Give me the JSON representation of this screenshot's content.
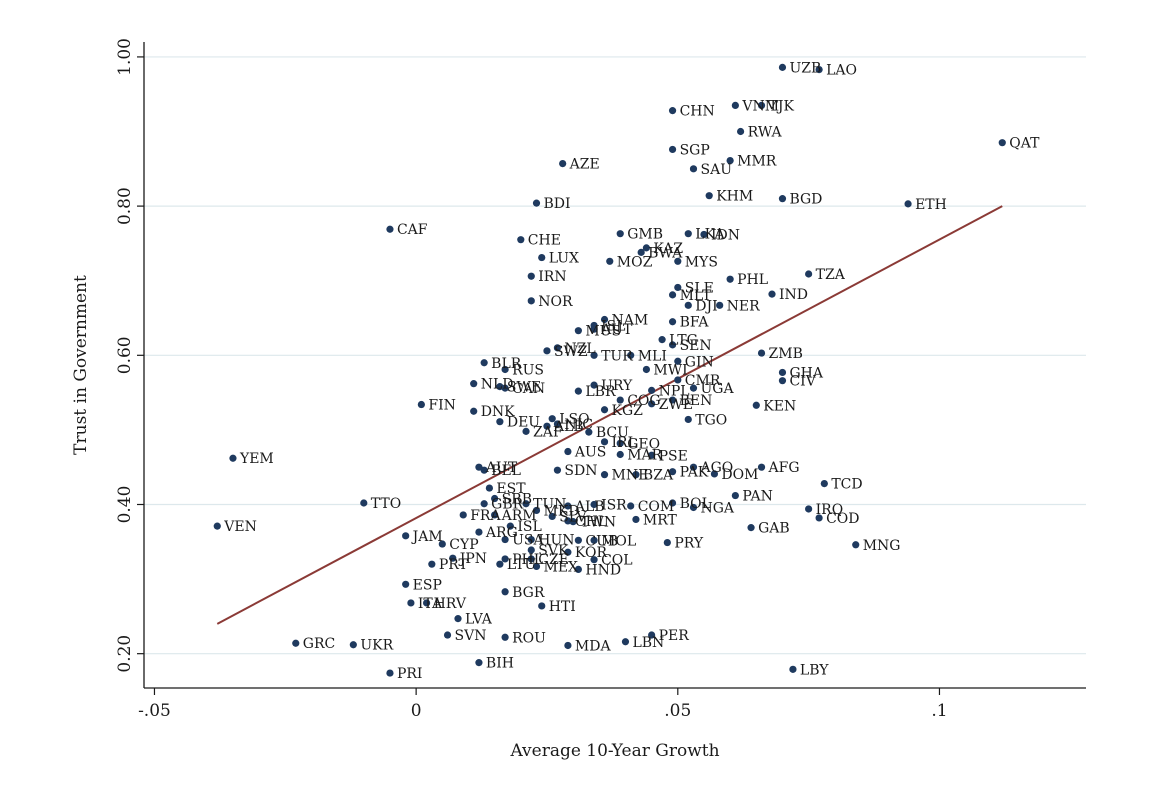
{
  "chart_data": {
    "type": "scatter",
    "title": "",
    "xlabel": "Average 10-Year Growth",
    "ylabel": "Trust in Government",
    "xlim": [
      -0.052,
      0.128
    ],
    "ylim": [
      0.154,
      1.02
    ],
    "x_ticks": [
      -0.05,
      0,
      0.05,
      0.1
    ],
    "x_tick_labels": [
      "-.05",
      "0",
      ".05",
      ".1"
    ],
    "y_ticks": [
      0.2,
      0.4,
      0.6,
      0.8,
      1.0
    ],
    "y_tick_labels": [
      "0.20",
      "0.40",
      "0.60",
      "0.80",
      "1.00"
    ],
    "grid": "horizontal",
    "colors": {
      "point": "#1f3a5f",
      "fit_line": "#8b3a36",
      "grid": "#dde8ec",
      "axis": "#1a1a1a"
    },
    "fit_line": {
      "x": [
        -0.038,
        0.112
      ],
      "y": [
        0.24,
        0.8
      ]
    },
    "points": [
      {
        "label": "UZB",
        "x": 0.07,
        "y": 0.986
      },
      {
        "label": "LAO",
        "x": 0.077,
        "y": 0.983
      },
      {
        "label": "VNM",
        "x": 0.061,
        "y": 0.935
      },
      {
        "label": "TJK",
        "x": 0.066,
        "y": 0.935
      },
      {
        "label": "CHN",
        "x": 0.049,
        "y": 0.928
      },
      {
        "label": "RWA",
        "x": 0.062,
        "y": 0.9
      },
      {
        "label": "QAT",
        "x": 0.112,
        "y": 0.885
      },
      {
        "label": "SGP",
        "x": 0.049,
        "y": 0.876
      },
      {
        "label": "MMR",
        "x": 0.06,
        "y": 0.861
      },
      {
        "label": "AZE",
        "x": 0.028,
        "y": 0.857
      },
      {
        "label": "SAU",
        "x": 0.053,
        "y": 0.85
      },
      {
        "label": "KHM",
        "x": 0.056,
        "y": 0.814
      },
      {
        "label": "BGD",
        "x": 0.07,
        "y": 0.81
      },
      {
        "label": "BDI",
        "x": 0.023,
        "y": 0.804
      },
      {
        "label": "ETH",
        "x": 0.094,
        "y": 0.803
      },
      {
        "label": "CAF",
        "x": -0.005,
        "y": 0.769
      },
      {
        "label": "GMB",
        "x": 0.039,
        "y": 0.763
      },
      {
        "label": "LKA",
        "x": 0.052,
        "y": 0.763
      },
      {
        "label": "IDN",
        "x": 0.055,
        "y": 0.762
      },
      {
        "label": "CHE",
        "x": 0.02,
        "y": 0.755
      },
      {
        "label": "KAZ",
        "x": 0.044,
        "y": 0.744
      },
      {
        "label": "BWA",
        "x": 0.043,
        "y": 0.738
      },
      {
        "label": "LUX",
        "x": 0.024,
        "y": 0.731
      },
      {
        "label": "MOZ",
        "x": 0.037,
        "y": 0.726
      },
      {
        "label": "MYS",
        "x": 0.05,
        "y": 0.726
      },
      {
        "label": "TZA",
        "x": 0.075,
        "y": 0.709
      },
      {
        "label": "IRN",
        "x": 0.022,
        "y": 0.706
      },
      {
        "label": "PHL",
        "x": 0.06,
        "y": 0.702
      },
      {
        "label": "SLE",
        "x": 0.05,
        "y": 0.691
      },
      {
        "label": "MLT",
        "x": 0.049,
        "y": 0.681
      },
      {
        "label": "IND",
        "x": 0.068,
        "y": 0.682
      },
      {
        "label": "NOR",
        "x": 0.022,
        "y": 0.673
      },
      {
        "label": "DJI",
        "x": 0.052,
        "y": 0.667
      },
      {
        "label": "NER",
        "x": 0.058,
        "y": 0.667
      },
      {
        "label": "NAM",
        "x": 0.036,
        "y": 0.648
      },
      {
        "label": "BFA",
        "x": 0.049,
        "y": 0.645
      },
      {
        "label": "ISL",
        "x": 0.034,
        "y": 0.64
      },
      {
        "label": "AUT",
        "x": 0.034,
        "y": 0.635
      },
      {
        "label": "MUS",
        "x": 0.031,
        "y": 0.633
      },
      {
        "label": "LTG",
        "x": 0.047,
        "y": 0.621
      },
      {
        "label": "SEN",
        "x": 0.049,
        "y": 0.614
      },
      {
        "label": "NZL",
        "x": 0.027,
        "y": 0.61
      },
      {
        "label": "SWZ",
        "x": 0.025,
        "y": 0.606
      },
      {
        "label": "TUR",
        "x": 0.034,
        "y": 0.6
      },
      {
        "label": "MLI",
        "x": 0.041,
        "y": 0.6
      },
      {
        "label": "ZMB",
        "x": 0.066,
        "y": 0.603
      },
      {
        "label": "GIN",
        "x": 0.05,
        "y": 0.592
      },
      {
        "label": "BLR",
        "x": 0.013,
        "y": 0.59
      },
      {
        "label": "RUS",
        "x": 0.017,
        "y": 0.581
      },
      {
        "label": "MWI",
        "x": 0.044,
        "y": 0.581
      },
      {
        "label": "GHA",
        "x": 0.07,
        "y": 0.577
      },
      {
        "label": "CMR",
        "x": 0.05,
        "y": 0.567
      },
      {
        "label": "CIV",
        "x": 0.07,
        "y": 0.566
      },
      {
        "label": "NLD",
        "x": 0.011,
        "y": 0.562
      },
      {
        "label": "URY",
        "x": 0.034,
        "y": 0.56
      },
      {
        "label": "SWE",
        "x": 0.016,
        "y": 0.558
      },
      {
        "label": "CAN",
        "x": 0.017,
        "y": 0.556
      },
      {
        "label": "UGA",
        "x": 0.053,
        "y": 0.556
      },
      {
        "label": "NPL",
        "x": 0.045,
        "y": 0.553
      },
      {
        "label": "LBR",
        "x": 0.031,
        "y": 0.552
      },
      {
        "label": "COG",
        "x": 0.039,
        "y": 0.54
      },
      {
        "label": "BEN",
        "x": 0.049,
        "y": 0.54
      },
      {
        "label": "ZWE",
        "x": 0.045,
        "y": 0.535
      },
      {
        "label": "KEN",
        "x": 0.065,
        "y": 0.533
      },
      {
        "label": "FIN",
        "x": 0.001,
        "y": 0.534
      },
      {
        "label": "KGZ",
        "x": 0.036,
        "y": 0.527
      },
      {
        "label": "DNK",
        "x": 0.011,
        "y": 0.525
      },
      {
        "label": "TGO",
        "x": 0.052,
        "y": 0.514
      },
      {
        "label": "LSO",
        "x": 0.026,
        "y": 0.515
      },
      {
        "label": "DEU",
        "x": 0.016,
        "y": 0.511
      },
      {
        "label": "NIC",
        "x": 0.027,
        "y": 0.508
      },
      {
        "label": "ALB",
        "x": 0.025,
        "y": 0.505
      },
      {
        "label": "ZAF",
        "x": 0.021,
        "y": 0.498
      },
      {
        "label": "BCU",
        "x": 0.033,
        "y": 0.497
      },
      {
        "label": "IRL",
        "x": 0.036,
        "y": 0.484
      },
      {
        "label": "GEO",
        "x": 0.039,
        "y": 0.482
      },
      {
        "label": "MAR",
        "x": 0.039,
        "y": 0.467
      },
      {
        "label": "PSE",
        "x": 0.045,
        "y": 0.466
      },
      {
        "label": "AUS",
        "x": 0.029,
        "y": 0.471
      },
      {
        "label": "YEM",
        "x": -0.035,
        "y": 0.462
      },
      {
        "label": "AUT",
        "x": 0.012,
        "y": 0.45
      },
      {
        "label": "SDN",
        "x": 0.027,
        "y": 0.446
      },
      {
        "label": "AGO",
        "x": 0.053,
        "y": 0.45
      },
      {
        "label": "AFG",
        "x": 0.066,
        "y": 0.45
      },
      {
        "label": "BEL",
        "x": 0.013,
        "y": 0.446
      },
      {
        "label": "PAK",
        "x": 0.049,
        "y": 0.444
      },
      {
        "label": "DOM",
        "x": 0.057,
        "y": 0.441
      },
      {
        "label": "MNE",
        "x": 0.036,
        "y": 0.44
      },
      {
        "label": "BZA",
        "x": 0.042,
        "y": 0.44
      },
      {
        "label": "TCD",
        "x": 0.078,
        "y": 0.428
      },
      {
        "label": "EST",
        "x": 0.014,
        "y": 0.422
      },
      {
        "label": "PAN",
        "x": 0.061,
        "y": 0.412
      },
      {
        "label": "SRB",
        "x": 0.015,
        "y": 0.408
      },
      {
        "label": "TUN",
        "x": 0.021,
        "y": 0.401
      },
      {
        "label": "TTO",
        "x": -0.01,
        "y": 0.402
      },
      {
        "label": "GBR",
        "x": 0.013,
        "y": 0.401
      },
      {
        "label": "ISR",
        "x": 0.034,
        "y": 0.4
      },
      {
        "label": "BOL",
        "x": 0.049,
        "y": 0.402
      },
      {
        "label": "COM",
        "x": 0.041,
        "y": 0.398
      },
      {
        "label": "ALB",
        "x": 0.029,
        "y": 0.398
      },
      {
        "label": "NGA",
        "x": 0.053,
        "y": 0.396
      },
      {
        "label": "IRQ",
        "x": 0.075,
        "y": 0.394
      },
      {
        "label": "MKD",
        "x": 0.023,
        "y": 0.392
      },
      {
        "label": "ARM",
        "x": 0.015,
        "y": 0.386
      },
      {
        "label": "FRA",
        "x": 0.009,
        "y": 0.386
      },
      {
        "label": "SLV",
        "x": 0.026,
        "y": 0.384
      },
      {
        "label": "COD",
        "x": 0.077,
        "y": 0.382
      },
      {
        "label": "MRT",
        "x": 0.042,
        "y": 0.38
      },
      {
        "label": "CHL",
        "x": 0.029,
        "y": 0.378
      },
      {
        "label": "TWN",
        "x": 0.03,
        "y": 0.377
      },
      {
        "label": "GAB",
        "x": 0.064,
        "y": 0.369
      },
      {
        "label": "ISL",
        "x": 0.018,
        "y": 0.371
      },
      {
        "label": "VEN",
        "x": -0.038,
        "y": 0.371
      },
      {
        "label": "ARG",
        "x": 0.012,
        "y": 0.363
      },
      {
        "label": "JAM",
        "x": -0.002,
        "y": 0.358
      },
      {
        "label": "USA",
        "x": 0.017,
        "y": 0.353
      },
      {
        "label": "HUN",
        "x": 0.022,
        "y": 0.353
      },
      {
        "label": "CUB",
        "x": 0.031,
        "y": 0.352
      },
      {
        "label": "MOL",
        "x": 0.034,
        "y": 0.352
      },
      {
        "label": "PRY",
        "x": 0.048,
        "y": 0.349
      },
      {
        "label": "MNG",
        "x": 0.084,
        "y": 0.346
      },
      {
        "label": "CYP",
        "x": 0.005,
        "y": 0.347
      },
      {
        "label": "SVK",
        "x": 0.022,
        "y": 0.339
      },
      {
        "label": "KOR",
        "x": 0.029,
        "y": 0.336
      },
      {
        "label": "JPN",
        "x": 0.007,
        "y": 0.328
      },
      {
        "label": "PHL",
        "x": 0.017,
        "y": 0.327
      },
      {
        "label": "CZE",
        "x": 0.022,
        "y": 0.327
      },
      {
        "label": "COL",
        "x": 0.034,
        "y": 0.326
      },
      {
        "label": "PRT",
        "x": 0.003,
        "y": 0.32
      },
      {
        "label": "LTU",
        "x": 0.016,
        "y": 0.32
      },
      {
        "label": "MEX",
        "x": 0.023,
        "y": 0.317
      },
      {
        "label": "HND",
        "x": 0.031,
        "y": 0.313
      },
      {
        "label": "ESP",
        "x": -0.002,
        "y": 0.293
      },
      {
        "label": "BGR",
        "x": 0.017,
        "y": 0.283
      },
      {
        "label": "ITA",
        "x": -0.001,
        "y": 0.268
      },
      {
        "label": "HRV",
        "x": 0.002,
        "y": 0.268
      },
      {
        "label": "HTI",
        "x": 0.024,
        "y": 0.264
      },
      {
        "label": "LVA",
        "x": 0.008,
        "y": 0.247
      },
      {
        "label": "SVN",
        "x": 0.006,
        "y": 0.225
      },
      {
        "label": "ROU",
        "x": 0.017,
        "y": 0.222
      },
      {
        "label": "PER",
        "x": 0.045,
        "y": 0.225
      },
      {
        "label": "LBN",
        "x": 0.04,
        "y": 0.216
      },
      {
        "label": "GRC",
        "x": -0.023,
        "y": 0.214
      },
      {
        "label": "UKR",
        "x": -0.012,
        "y": 0.212
      },
      {
        "label": "MDA",
        "x": 0.029,
        "y": 0.211
      },
      {
        "label": "BIH",
        "x": 0.012,
        "y": 0.188
      },
      {
        "label": "LBY",
        "x": 0.072,
        "y": 0.179
      },
      {
        "label": "PRI",
        "x": -0.005,
        "y": 0.174
      }
    ]
  }
}
